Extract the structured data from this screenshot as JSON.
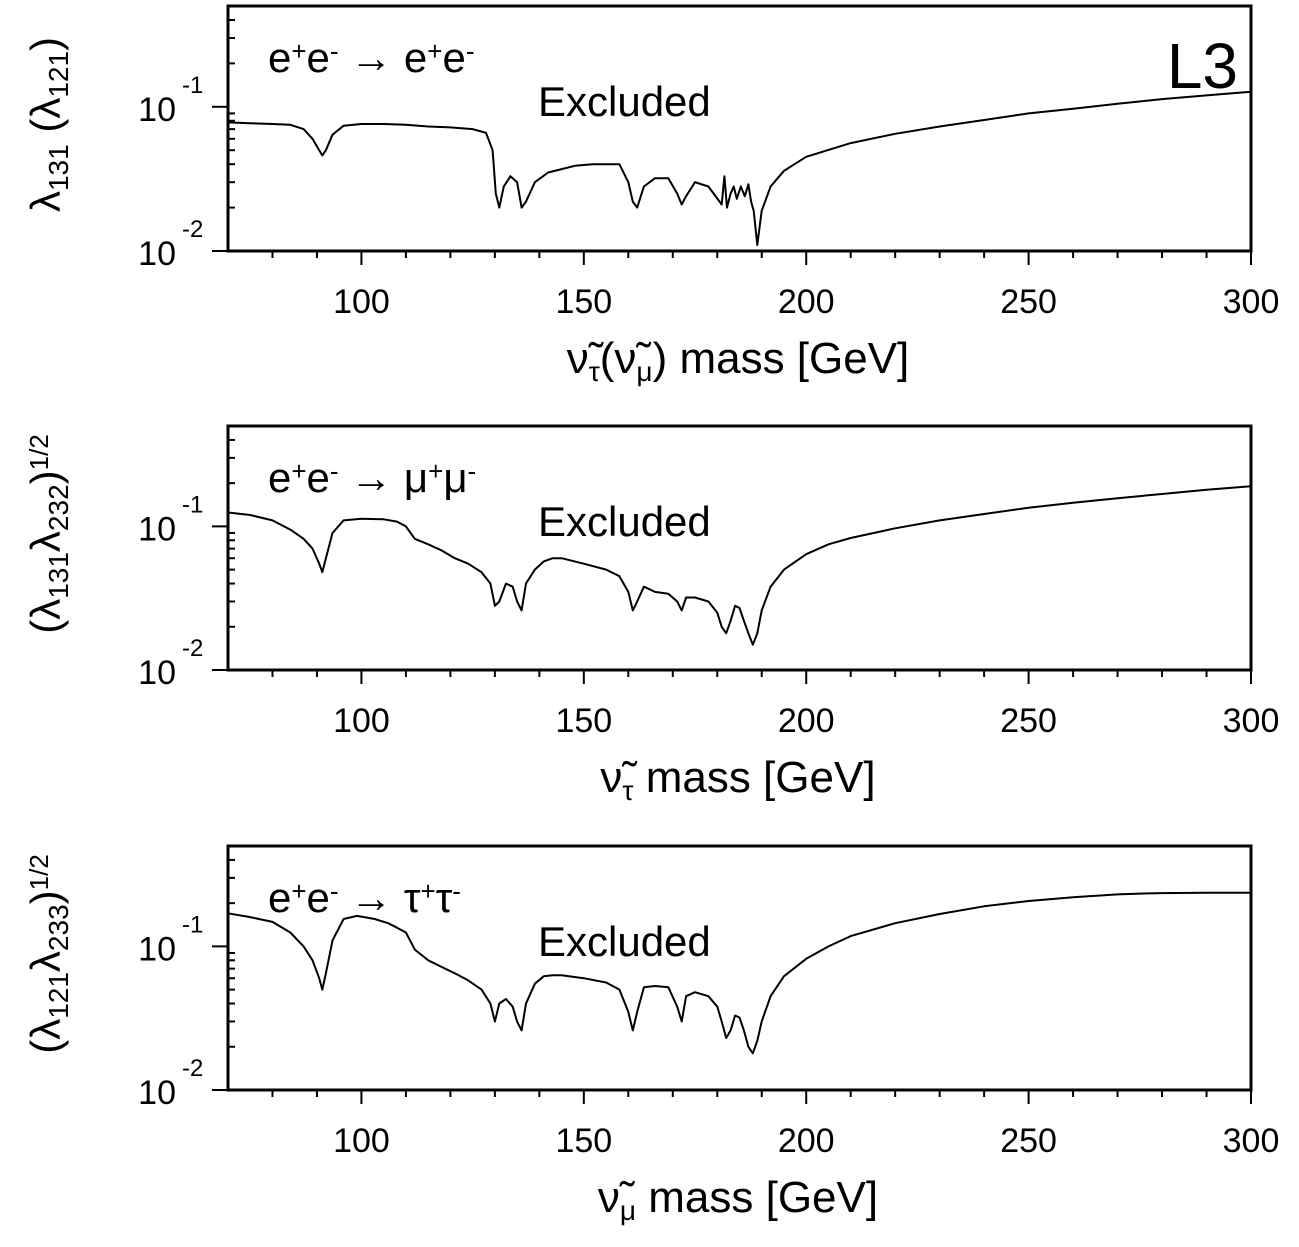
{
  "experiment_label": "L3",
  "chart_data": [
    {
      "type": "line",
      "x_scale": "linear",
      "y_scale": "log",
      "xlim": [
        70,
        300
      ],
      "ylim": [
        0.01,
        0.5
      ],
      "x_ticks": [
        "100",
        "150",
        "200",
        "250",
        "300"
      ],
      "y_ticks": [
        {
          "base": "10",
          "exp": "-1"
        },
        {
          "base": "10",
          "exp": "-2"
        }
      ],
      "process": {
        "parts": [
          "e",
          "+",
          "e",
          "-",
          " → e",
          "+",
          "e",
          "-"
        ]
      },
      "region_label": "Excluded",
      "ylabel": {
        "parts": [
          "λ",
          "131",
          " (λ",
          "121",
          ")"
        ]
      },
      "xlabel": {
        "parts": [
          "ν̃",
          "τ",
          "(ν̃",
          "μ",
          ")  mass [GeV]"
        ]
      },
      "series": [
        {
          "x": [
            70,
            75,
            80,
            84,
            87,
            89,
            90.5,
            91.2,
            92,
            93.5,
            96,
            100,
            105,
            110,
            115,
            120,
            125,
            128,
            129.5,
            130.2,
            131,
            132,
            133.5,
            135,
            136,
            137,
            139,
            142,
            145,
            148,
            152,
            156,
            158,
            160,
            161,
            162,
            163.5,
            166,
            169,
            171,
            172,
            173,
            175,
            178,
            181,
            181.6,
            182.2,
            183,
            183.7,
            184.4,
            185.3,
            186.2,
            187,
            187.6,
            188.2,
            189,
            190,
            192,
            195,
            200,
            210,
            220,
            230,
            240,
            250,
            260,
            270,
            280,
            290,
            300
          ],
          "y": [
            0.078,
            0.077,
            0.076,
            0.075,
            0.07,
            0.06,
            0.05,
            0.046,
            0.05,
            0.064,
            0.074,
            0.076,
            0.076,
            0.075,
            0.073,
            0.072,
            0.07,
            0.066,
            0.05,
            0.025,
            0.02,
            0.028,
            0.033,
            0.03,
            0.02,
            0.022,
            0.03,
            0.035,
            0.037,
            0.039,
            0.04,
            0.04,
            0.04,
            0.03,
            0.022,
            0.02,
            0.028,
            0.032,
            0.032,
            0.025,
            0.021,
            0.024,
            0.03,
            0.028,
            0.021,
            0.033,
            0.02,
            0.025,
            0.028,
            0.023,
            0.028,
            0.024,
            0.029,
            0.022,
            0.019,
            0.011,
            0.019,
            0.028,
            0.036,
            0.045,
            0.056,
            0.065,
            0.073,
            0.081,
            0.09,
            0.097,
            0.105,
            0.113,
            0.12,
            0.127
          ]
        }
      ]
    },
    {
      "type": "line",
      "x_scale": "linear",
      "y_scale": "log",
      "xlim": [
        70,
        300
      ],
      "ylim": [
        0.01,
        0.5
      ],
      "x_ticks": [
        "100",
        "150",
        "200",
        "250",
        "300"
      ],
      "y_ticks": [
        {
          "base": "10",
          "exp": "-1"
        },
        {
          "base": "10",
          "exp": "-2"
        }
      ],
      "process": {
        "parts": [
          "e",
          "+",
          "e",
          "-",
          " → μ",
          "+",
          "μ",
          "-"
        ]
      },
      "region_label": "Excluded",
      "ylabel": {
        "parts": [
          "(λ",
          "131",
          "λ",
          "232",
          ")",
          "1/2"
        ]
      },
      "xlabel": {
        "parts": [
          "ν̃",
          "τ",
          "  mass [GeV]"
        ]
      },
      "series": [
        {
          "x": [
            70,
            75,
            80,
            84,
            87,
            89,
            90.5,
            91.2,
            92,
            93.5,
            96,
            100,
            105,
            108,
            110,
            112,
            115,
            118,
            121,
            124,
            127,
            129,
            130,
            131,
            132.5,
            134,
            135,
            136,
            137,
            139,
            141,
            143,
            145,
            150,
            155,
            158,
            160,
            161,
            162,
            163.5,
            166,
            169,
            171,
            172,
            173,
            175,
            178,
            180,
            181,
            182,
            183,
            184,
            185,
            186,
            187,
            188,
            189,
            190,
            192,
            195,
            200,
            205,
            210,
            220,
            230,
            240,
            250,
            260,
            270,
            280,
            290,
            300
          ],
          "y": [
            0.125,
            0.12,
            0.11,
            0.095,
            0.082,
            0.07,
            0.055,
            0.048,
            0.06,
            0.09,
            0.11,
            0.113,
            0.112,
            0.108,
            0.1,
            0.082,
            0.075,
            0.068,
            0.06,
            0.055,
            0.048,
            0.04,
            0.028,
            0.03,
            0.04,
            0.038,
            0.03,
            0.026,
            0.04,
            0.05,
            0.057,
            0.06,
            0.06,
            0.055,
            0.05,
            0.045,
            0.035,
            0.026,
            0.03,
            0.038,
            0.035,
            0.034,
            0.03,
            0.026,
            0.032,
            0.032,
            0.03,
            0.025,
            0.02,
            0.018,
            0.022,
            0.028,
            0.027,
            0.022,
            0.018,
            0.015,
            0.018,
            0.026,
            0.038,
            0.05,
            0.064,
            0.075,
            0.083,
            0.097,
            0.11,
            0.122,
            0.135,
            0.146,
            0.157,
            0.168,
            0.18,
            0.19
          ]
        }
      ]
    },
    {
      "type": "line",
      "x_scale": "linear",
      "y_scale": "log",
      "xlim": [
        70,
        300
      ],
      "ylim": [
        0.01,
        0.5
      ],
      "x_ticks": [
        "100",
        "150",
        "200",
        "250",
        "300"
      ],
      "y_ticks": [
        {
          "base": "10",
          "exp": "-1"
        },
        {
          "base": "10",
          "exp": "-2"
        }
      ],
      "process": {
        "parts": [
          "e",
          "+",
          "e",
          "-",
          " → τ",
          "+",
          "τ",
          "-"
        ]
      },
      "region_label": "Excluded",
      "ylabel": {
        "parts": [
          "(λ",
          "121",
          "λ",
          "233",
          ")",
          "1/2"
        ]
      },
      "xlabel": {
        "parts": [
          "ν̃",
          "μ",
          "  mass [GeV]"
        ]
      },
      "series": [
        {
          "x": [
            70,
            75,
            80,
            84,
            87,
            89,
            90.5,
            91.2,
            92,
            93.5,
            96,
            99,
            103,
            106,
            108,
            110,
            112,
            115,
            118,
            121,
            124,
            127,
            129,
            130,
            131,
            132.5,
            134,
            135,
            136,
            137,
            139,
            141,
            143,
            145,
            150,
            155,
            158,
            160,
            161,
            162,
            163.5,
            166,
            169,
            171,
            172,
            173,
            175,
            178,
            180,
            181,
            182,
            183,
            184,
            185,
            186,
            187,
            188,
            189,
            190,
            192,
            195,
            200,
            205,
            210,
            220,
            230,
            240,
            250,
            260,
            270,
            275,
            280,
            290,
            300
          ],
          "y": [
            0.17,
            0.16,
            0.148,
            0.125,
            0.1,
            0.08,
            0.06,
            0.05,
            0.065,
            0.11,
            0.155,
            0.163,
            0.155,
            0.145,
            0.135,
            0.125,
            0.095,
            0.08,
            0.072,
            0.065,
            0.058,
            0.05,
            0.04,
            0.03,
            0.04,
            0.043,
            0.038,
            0.03,
            0.026,
            0.04,
            0.055,
            0.062,
            0.063,
            0.063,
            0.06,
            0.056,
            0.05,
            0.035,
            0.026,
            0.035,
            0.052,
            0.053,
            0.052,
            0.038,
            0.03,
            0.045,
            0.048,
            0.045,
            0.038,
            0.03,
            0.023,
            0.026,
            0.033,
            0.032,
            0.026,
            0.02,
            0.018,
            0.022,
            0.03,
            0.045,
            0.062,
            0.082,
            0.1,
            0.118,
            0.145,
            0.168,
            0.19,
            0.207,
            0.22,
            0.23,
            0.233,
            0.235,
            0.236,
            0.236
          ]
        }
      ]
    }
  ]
}
